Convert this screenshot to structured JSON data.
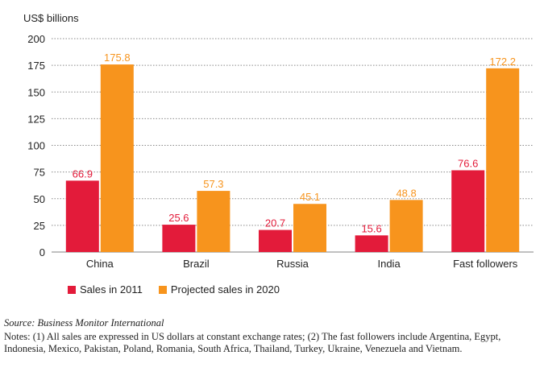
{
  "chart_data": {
    "type": "bar",
    "ylabel": "US$ billions",
    "ylim": [
      0,
      200
    ],
    "yticks": [
      0,
      25,
      50,
      75,
      100,
      125,
      150,
      175,
      200
    ],
    "grid": true,
    "categories": [
      "China",
      "Brazil",
      "Russia",
      "India",
      "Fast followers"
    ],
    "series": [
      {
        "name": "Sales in 2011",
        "values": [
          66.9,
          25.6,
          20.7,
          15.6,
          76.6
        ],
        "labels": [
          "66.9",
          "25.6",
          "20.7",
          "15.6",
          "76.6"
        ],
        "color": "#e31b3a"
      },
      {
        "name": "Projected sales in 2020",
        "values": [
          175.8,
          57.3,
          45.1,
          48.8,
          172.2
        ],
        "labels": [
          "175.8",
          "57.3",
          "45.1",
          "48.8",
          "172.2"
        ],
        "color": "#f7941d"
      }
    ],
    "legend_position": "bottom-left"
  },
  "source": "Source: Business Monitor International",
  "notes": "Notes: (1) All sales are expressed in US dollars at constant exchange rates; (2) The fast followers include Argentina, Egypt, Indonesia, Mexico, Pakistan, Poland, Romania, South Africa, Thailand, Turkey, Ukraine, Venezuela and Vietnam."
}
